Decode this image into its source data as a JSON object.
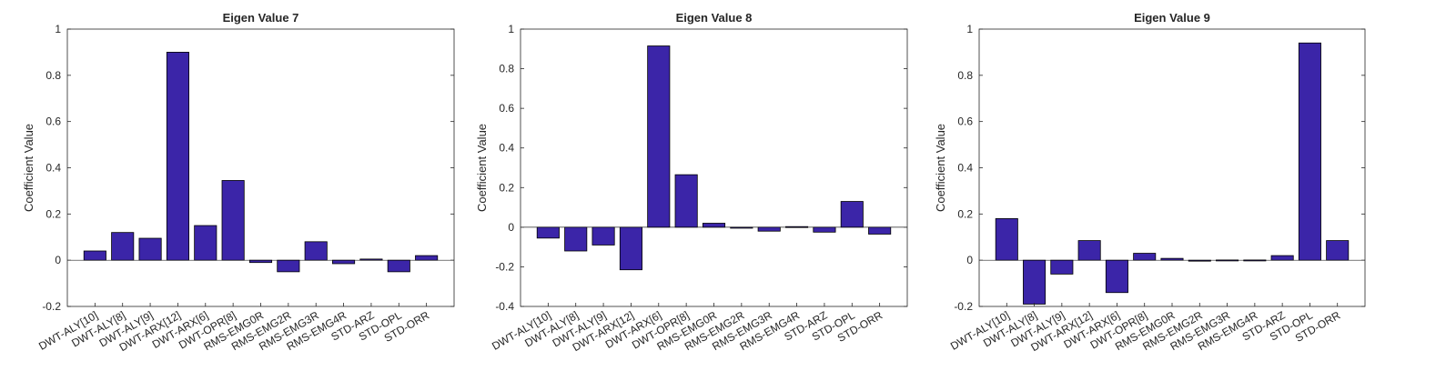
{
  "chart_data": [
    {
      "type": "bar",
      "title": "Eigen Value 7",
      "ylabel": "Coefficient Value",
      "xlabel": "",
      "ylim": [
        -0.2,
        1
      ],
      "yticks": [
        -0.2,
        0,
        0.2,
        0.4,
        0.6,
        0.8,
        1
      ],
      "ytick_labels": [
        "-0.2",
        "0",
        "0.2",
        "0.4",
        "0.6",
        "0.8",
        "1"
      ],
      "categories": [
        "DWT-ALY[10]",
        "DWT-ALY[8]",
        "DWT-ALY[9]",
        "DWT-ARX[12]",
        "DWT-ARX[6]",
        "DWT-OPR[8]",
        "RMS-EMG0R",
        "RMS-EMG2R",
        "RMS-EMG3R",
        "RMS-EMG4R",
        "STD-ARZ",
        "STD-OPL",
        "STD-ORR"
      ],
      "values": [
        0.04,
        0.12,
        0.095,
        0.9,
        0.15,
        0.345,
        -0.01,
        -0.05,
        0.08,
        -0.015,
        0.005,
        -0.05,
        0.02
      ],
      "grid": false
    },
    {
      "type": "bar",
      "title": "Eigen Value 8",
      "ylabel": "Coefficient Value",
      "xlabel": "",
      "ylim": [
        -0.4,
        1
      ],
      "yticks": [
        -0.4,
        -0.2,
        0,
        0.2,
        0.4,
        0.6,
        0.8,
        1
      ],
      "ytick_labels": [
        "-0.4",
        "-0.2",
        "0",
        "0.2",
        "0.4",
        "0.6",
        "0.8",
        "1"
      ],
      "categories": [
        "DWT-ALY[10]",
        "DWT-ALY[8]",
        "DWT-ALY[9]",
        "DWT-ARX[12]",
        "DWT-ARX[6]",
        "DWT-OPR[8]",
        "RMS-EMG0R",
        "RMS-EMG2R",
        "RMS-EMG3R",
        "RMS-EMG4R",
        "STD-ARZ",
        "STD-OPL",
        "STD-ORR"
      ],
      "values": [
        -0.055,
        -0.12,
        -0.09,
        -0.215,
        0.915,
        0.265,
        0.02,
        -0.005,
        -0.02,
        0.003,
        -0.025,
        0.13,
        -0.035
      ],
      "grid": false
    },
    {
      "type": "bar",
      "title": "Eigen Value 9",
      "ylabel": "Coefficient Value",
      "xlabel": "",
      "ylim": [
        -0.2,
        1
      ],
      "yticks": [
        -0.2,
        0,
        0.2,
        0.4,
        0.6,
        0.8,
        1
      ],
      "ytick_labels": [
        "-0.2",
        "0",
        "0.2",
        "0.4",
        "0.6",
        "0.8",
        "1"
      ],
      "categories": [
        "DWT-ALY[10]",
        "DWT-ALY[8]",
        "DWT-ALY[9]",
        "DWT-ARX[12]",
        "DWT-ARX[6]",
        "DWT-OPR[8]",
        "RMS-EMG0R",
        "RMS-EMG2R",
        "RMS-EMG3R",
        "RMS-EMG4R",
        "STD-ARZ",
        "STD-OPL",
        "STD-ORR"
      ],
      "values": [
        0.18,
        -0.19,
        -0.06,
        0.085,
        -0.14,
        0.03,
        0.008,
        -0.004,
        0.001,
        0.001,
        0.02,
        0.94,
        0.085
      ],
      "grid": false
    }
  ],
  "colors": {
    "bar_fill": "#3b25a8",
    "bar_edge": "#000000",
    "axis": "#262626"
  }
}
